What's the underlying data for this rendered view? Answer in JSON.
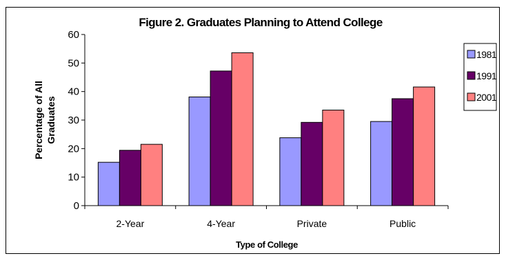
{
  "chart_data": {
    "type": "bar",
    "title": "Figure 2. Graduates Planning to Attend College",
    "xlabel": "Type of College",
    "ylabel_line1": "Percentage of All",
    "ylabel_line2": "Graduates",
    "categories": [
      "2-Year",
      "4-Year",
      "Private",
      "Public"
    ],
    "series": [
      {
        "name": "1981",
        "color": "#9999ff",
        "values": [
          15.2,
          38.1,
          23.8,
          29.5
        ]
      },
      {
        "name": "1991",
        "color": "#660066",
        "values": [
          19.4,
          47.2,
          29.2,
          37.5
        ]
      },
      {
        "name": "2001",
        "color": "#ff8080",
        "values": [
          21.5,
          53.6,
          33.5,
          41.6
        ]
      }
    ],
    "ylim": [
      0,
      60
    ],
    "yticks": [
      "0",
      "10",
      "20",
      "30",
      "40",
      "50",
      "60"
    ],
    "grid": false,
    "legend_position": "right"
  }
}
